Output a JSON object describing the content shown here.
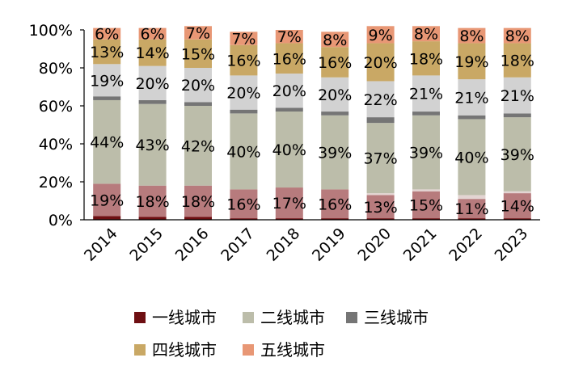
{
  "chart_data": {
    "type": "bar",
    "stacked": true,
    "categories": [
      "2014",
      "2015",
      "2016",
      "2017",
      "2018",
      "2019",
      "2020",
      "2021",
      "2022",
      "2023"
    ],
    "series": [
      {
        "name": "一线城市",
        "color": "#6e0f12",
        "values": [
          2,
          1.5,
          1.5,
          0.8,
          0.8,
          0.8,
          0.8,
          0.8,
          0.8,
          0.8
        ],
        "labels": [
          "",
          "",
          "",
          "",
          "",
          "",
          "",
          "",
          "",
          ""
        ]
      },
      {
        "name": "",
        "color": "#b77b7d",
        "values": [
          17,
          16.5,
          16.5,
          15.2,
          16.2,
          15.2,
          12.2,
          14.2,
          10.2,
          13.2
        ],
        "labels": [
          "19%",
          "18%",
          "18%",
          "16%",
          "17%",
          "16%",
          "13%",
          "15%",
          "11%",
          "14%"
        ]
      },
      {
        "name": "",
        "color": "#e3d4d2",
        "values": [
          0,
          0,
          0,
          0,
          0,
          0,
          1,
          1,
          2,
          1
        ],
        "labels": [
          "",
          "",
          "",
          "",
          "",
          "",
          "",
          "",
          "",
          ""
        ]
      },
      {
        "name": "二线城市",
        "color": "#bcbdaa",
        "values": [
          44,
          43,
          42,
          40,
          40,
          39,
          37,
          39,
          40,
          39
        ],
        "labels": [
          "44%",
          "43%",
          "42%",
          "40%",
          "40%",
          "39%",
          "37%",
          "39%",
          "40%",
          "39%"
        ]
      },
      {
        "name": "三线城市",
        "color": "#757575",
        "values": [
          2,
          2,
          2,
          2,
          2,
          2,
          3,
          2,
          2,
          2
        ],
        "labels": [
          "",
          "",
          "",
          "",
          "",
          "",
          "",
          "",
          "",
          ""
        ]
      },
      {
        "name": "",
        "color": "#d2d2d2",
        "values": [
          17,
          18,
          18,
          18,
          18,
          18,
          19,
          19,
          19,
          19
        ],
        "labels": [
          "19%",
          "20%",
          "20%",
          "20%",
          "20%",
          "20%",
          "22%",
          "21%",
          "21%",
          "21%"
        ]
      },
      {
        "name": "四线城市",
        "color": "#c9a865",
        "values": [
          13,
          14,
          15,
          16,
          16,
          16,
          20,
          18,
          19,
          18
        ],
        "labels": [
          "13%",
          "14%",
          "15%",
          "16%",
          "16%",
          "16%",
          "20%",
          "18%",
          "19%",
          "18%"
        ]
      },
      {
        "name": "五线城市",
        "color": "#e89775",
        "values": [
          6,
          6,
          7,
          7,
          7,
          8,
          9,
          8,
          8,
          8
        ],
        "labels": [
          "6%",
          "6%",
          "7%",
          "7%",
          "7%",
          "8%",
          "9%",
          "8%",
          "8%",
          "8%"
        ]
      }
    ],
    "ylim": [
      0,
      100
    ],
    "yticks": [
      "0%",
      "20%",
      "40%",
      "60%",
      "80%",
      "100%"
    ],
    "ytick_values": [
      0,
      20,
      40,
      60,
      80,
      100
    ],
    "legend": [
      {
        "label": "一线城市",
        "color": "#6e0f12"
      },
      {
        "label": "二线城市",
        "color": "#bcbdaa"
      },
      {
        "label": "三线城市",
        "color": "#757575"
      },
      {
        "label": "四线城市",
        "color": "#c9a865"
      },
      {
        "label": "五线城市",
        "color": "#e89775"
      }
    ],
    "legend_position": "bottom",
    "grid": false
  }
}
